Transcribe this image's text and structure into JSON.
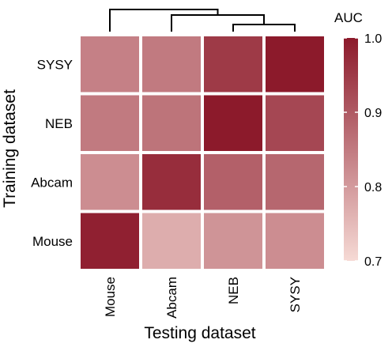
{
  "chart_data": {
    "type": "heatmap",
    "title": "",
    "xlabel": "Testing dataset",
    "ylabel": "Training dataset",
    "x_categories": [
      "Mouse",
      "Abcam",
      "NEB",
      "SYSY"
    ],
    "y_categories": [
      "SYSY",
      "NEB",
      "Abcam",
      "Mouse"
    ],
    "values": [
      [
        0.84,
        0.85,
        0.95,
        1.0
      ],
      [
        0.85,
        0.86,
        1.0,
        0.93
      ],
      [
        0.82,
        0.97,
        0.89,
        0.88
      ],
      [
        0.99,
        0.77,
        0.81,
        0.82
      ]
    ],
    "column_dendrogram": true,
    "colorbar": {
      "title": "AUC",
      "range": [
        0.7,
        1.0
      ],
      "ticks": [
        "0.7",
        "0.8",
        "0.9",
        "1.0"
      ],
      "low_color": "#f6dad5",
      "high_color": "#8c1a2b"
    },
    "legend_position": "right"
  }
}
